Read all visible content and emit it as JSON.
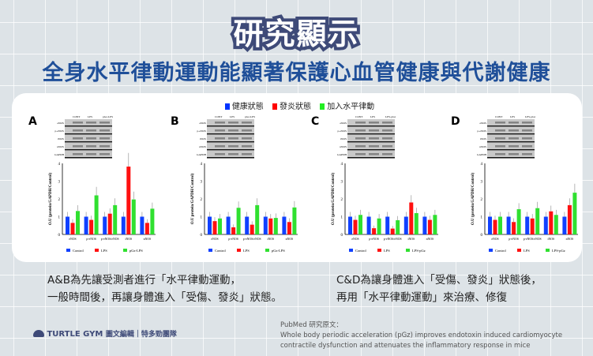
{
  "header": {
    "title": "研究顯示",
    "subtitle": "全身水平律動運動能顯著保護心血管健康與代謝健康"
  },
  "legend": [
    {
      "label": "健康狀態",
      "color": "#0033ff"
    },
    {
      "label": "發炎狀態",
      "color": "#ff0000"
    },
    {
      "label": "加入水平律動",
      "color": "#22ee22"
    }
  ],
  "chart_data": [
    {
      "panel": "A",
      "type": "bar",
      "blot_lanes": [
        "CONT",
        "LPS",
        "pGz-LPS"
      ],
      "blot_rows": [
        "eNOS",
        "p-eNOS",
        "iNOS",
        "nNOS",
        "GAPDH"
      ],
      "ylabel": "O.U (protein/GAPDH/Control)",
      "ylim": [
        0,
        4
      ],
      "yticks": [
        "0",
        "1",
        "2",
        "3",
        "4"
      ],
      "categories": [
        "eNOS",
        "p-eNOS",
        "p-eNOS/eNOS",
        "iNOS",
        "nNOS"
      ],
      "series": [
        {
          "name": "Control",
          "values": [
            1,
            1,
            1,
            1,
            1
          ]
        },
        {
          "name": "LPS",
          "values": [
            0.65,
            0.82,
            1.17,
            3.82,
            0.65
          ]
        },
        {
          "name": "pGz-LPS",
          "values": [
            1.32,
            2.2,
            1.65,
            1.97,
            1.45
          ]
        }
      ]
    },
    {
      "panel": "B",
      "type": "bar",
      "blot_lanes": [
        "CONT",
        "LPS",
        "pGz-LPS"
      ],
      "blot_rows": [
        "eNOS",
        "p-eNOS",
        "iNOS",
        "nNOS",
        "GAPDH"
      ],
      "ylabel": "O.U protein/GAPDH/Control)",
      "ylim": [
        0,
        4
      ],
      "yticks": [
        "0",
        "1",
        "2",
        "3",
        "4"
      ],
      "categories": [
        "eNOS",
        "p-eNOS",
        "p-eNOS/eNOS",
        "iNOS",
        "nNOS"
      ],
      "series": [
        {
          "name": "Control",
          "values": [
            1,
            1,
            1,
            1,
            1
          ]
        },
        {
          "name": "LPS",
          "values": [
            0.75,
            0.4,
            0.55,
            0.9,
            0.7
          ]
        },
        {
          "name": "pGz-LPS",
          "values": [
            0.9,
            1.5,
            1.65,
            0.93,
            1.52
          ]
        }
      ]
    },
    {
      "panel": "C",
      "type": "bar",
      "blot_lanes": [
        "CONT",
        "LPS",
        "LPS-pGz"
      ],
      "blot_rows": [
        "eNOS",
        "p-eNOS",
        "iNOS",
        "nNOS",
        "GAPDH"
      ],
      "ylabel": "O.U (protein/GAPDH/Control)",
      "ylim": [
        0,
        4
      ],
      "yticks": [
        "0",
        "1",
        "2",
        "3",
        "4"
      ],
      "categories": [
        "eNOS",
        "p-eNOS",
        "p-eNOS/eNOS",
        "iNOS",
        "nNOS"
      ],
      "series": [
        {
          "name": "Control",
          "values": [
            1,
            1,
            1,
            1,
            1
          ]
        },
        {
          "name": "LPS",
          "values": [
            0.82,
            0.35,
            0.33,
            1.8,
            0.82
          ]
        },
        {
          "name": "LPS-pGz",
          "values": [
            1.1,
            0.9,
            0.8,
            1.2,
            1.1
          ]
        }
      ]
    },
    {
      "panel": "D",
      "type": "bar",
      "blot_lanes": [
        "CONT",
        "LPS",
        "LPS-pGz"
      ],
      "blot_rows": [
        "eNOS",
        "p-eNOS",
        "iNOS",
        "nNOS",
        "GAPDH"
      ],
      "ylabel": "O.U (protein/GAPDH/Control)",
      "ylim": [
        0,
        4
      ],
      "yticks": [
        "0",
        "1",
        "2",
        "3",
        "4"
      ],
      "categories": [
        "eNOS",
        "p-eNOS",
        "p-eNOS/eNOS",
        "iNOS",
        "nNOS"
      ],
      "series": [
        {
          "name": "Control",
          "values": [
            1,
            1,
            1,
            1,
            1
          ]
        },
        {
          "name": "LPS",
          "values": [
            0.82,
            0.7,
            0.9,
            1.3,
            1.65
          ]
        },
        {
          "name": "LPS-pGz",
          "values": [
            1.0,
            1.42,
            1.48,
            1.1,
            2.35
          ]
        }
      ]
    }
  ],
  "series_colors": [
    "#1040ff",
    "#ff1010",
    "#30e030"
  ],
  "descriptions": {
    "left": [
      "A&B為先讓受測者進行「水平律動運動，",
      "一般時間後，再讓身體進入「受傷、發炎」狀態。"
    ],
    "right": [
      "C&D為讓身體進入「受傷、發炎」狀態後，",
      "再用「水平律動運動」來治療、修復"
    ]
  },
  "footer": {
    "brand": "TURTLE GYM",
    "brand_note": "圖文編輯｜特多勁團隊",
    "ref_title": "PubMed 研究原文：",
    "ref_lines": [
      "Whole body periodic acceleration (pGz) improves endotoxin induced cardiomyocyte",
      "contractile dysfunction and attenuates the inflammatory response in mice"
    ]
  }
}
